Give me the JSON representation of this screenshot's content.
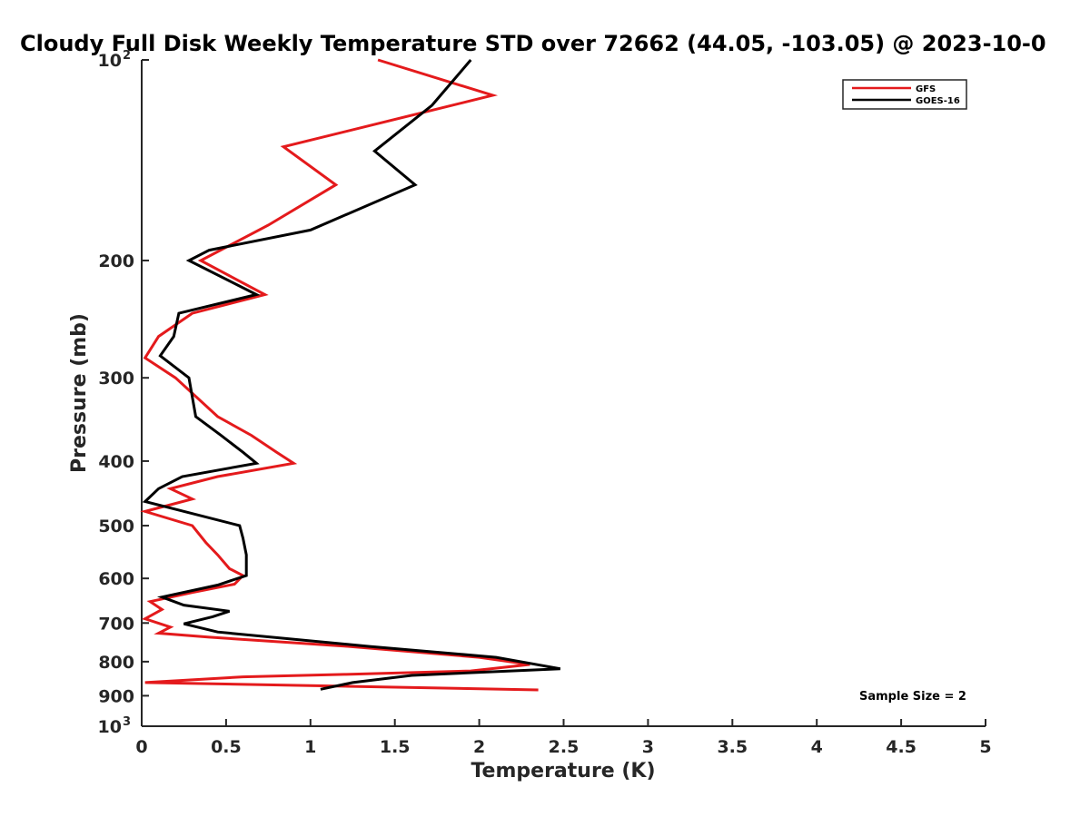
{
  "chart_data": {
    "type": "line",
    "title": "Cloudy Full Disk Weekly Temperature STD over 72662 (44.05, -103.05) @ 2023-10-0",
    "xlabel": "Temperature (K)",
    "ylabel": "Pressure (mb)",
    "xlim": [
      0,
      5
    ],
    "ylim": [
      100,
      1000
    ],
    "y_scale": "log",
    "y_reversed": true,
    "grid": false,
    "legend_position": "top-right",
    "x_ticks": [
      "0",
      "0.5",
      "1",
      "1.5",
      "2",
      "2.5",
      "3",
      "3.5",
      "4",
      "4.5",
      "5"
    ],
    "y_ticks": [
      {
        "value": 100,
        "base": "10",
        "exp": "2"
      },
      {
        "value": 200,
        "label": "200"
      },
      {
        "value": 300,
        "label": "300"
      },
      {
        "value": 400,
        "label": "400"
      },
      {
        "value": 500,
        "label": "500"
      },
      {
        "value": 600,
        "label": "600"
      },
      {
        "value": 700,
        "label": "700"
      },
      {
        "value": 800,
        "label": "800"
      },
      {
        "value": 900,
        "label": "900"
      },
      {
        "value": 1000,
        "base": "10",
        "exp": "3"
      }
    ],
    "annotation": "Sample Size = 2",
    "series": [
      {
        "name": "GFS",
        "color": "#e41a1c",
        "points": [
          [
            1.4,
            100
          ],
          [
            2.08,
            113
          ],
          [
            0.84,
            135
          ],
          [
            1.15,
            154
          ],
          [
            0.75,
            177
          ],
          [
            0.35,
            200
          ],
          [
            0.73,
            225
          ],
          [
            0.3,
            240
          ],
          [
            0.1,
            260
          ],
          [
            0.02,
            280
          ],
          [
            0.2,
            300
          ],
          [
            0.45,
            343
          ],
          [
            0.65,
            366
          ],
          [
            0.8,
            388
          ],
          [
            0.9,
            403
          ],
          [
            0.45,
            422
          ],
          [
            0.17,
            440
          ],
          [
            0.3,
            456
          ],
          [
            0.02,
            476
          ],
          [
            0.3,
            500
          ],
          [
            0.38,
            530
          ],
          [
            0.45,
            553
          ],
          [
            0.52,
            580
          ],
          [
            0.6,
            594
          ],
          [
            0.55,
            612
          ],
          [
            0.3,
            630
          ],
          [
            0.05,
            650
          ],
          [
            0.12,
            668
          ],
          [
            0.02,
            690
          ],
          [
            0.17,
            710
          ],
          [
            0.1,
            725
          ],
          [
            0.4,
            735
          ],
          [
            1.2,
            758
          ],
          [
            2.0,
            788
          ],
          [
            2.3,
            808
          ],
          [
            1.95,
            826
          ],
          [
            1.2,
            836
          ],
          [
            0.6,
            843
          ],
          [
            0.02,
            860
          ],
          [
            2.35,
            882
          ]
        ]
      },
      {
        "name": "GOES-16",
        "color": "#000000",
        "points": [
          [
            1.95,
            100
          ],
          [
            1.72,
            117
          ],
          [
            1.38,
            137
          ],
          [
            1.62,
            154
          ],
          [
            1.0,
            180
          ],
          [
            0.4,
            193
          ],
          [
            0.28,
            200
          ],
          [
            0.68,
            225
          ],
          [
            0.22,
            240
          ],
          [
            0.2,
            253
          ],
          [
            0.19,
            260
          ],
          [
            0.11,
            278
          ],
          [
            0.28,
            300
          ],
          [
            0.32,
            343
          ],
          [
            0.47,
            366
          ],
          [
            0.6,
            388
          ],
          [
            0.68,
            403
          ],
          [
            0.24,
            422
          ],
          [
            0.1,
            440
          ],
          [
            0.02,
            460
          ],
          [
            0.58,
            500
          ],
          [
            0.6,
            522
          ],
          [
            0.62,
            553
          ],
          [
            0.62,
            594
          ],
          [
            0.45,
            614
          ],
          [
            0.12,
            640
          ],
          [
            0.25,
            658
          ],
          [
            0.52,
            672
          ],
          [
            0.42,
            685
          ],
          [
            0.25,
            702
          ],
          [
            0.45,
            722
          ],
          [
            1.35,
            759
          ],
          [
            2.1,
            788
          ],
          [
            2.48,
            820
          ],
          [
            1.6,
            839
          ],
          [
            1.25,
            860
          ],
          [
            1.06,
            880
          ]
        ]
      }
    ]
  }
}
